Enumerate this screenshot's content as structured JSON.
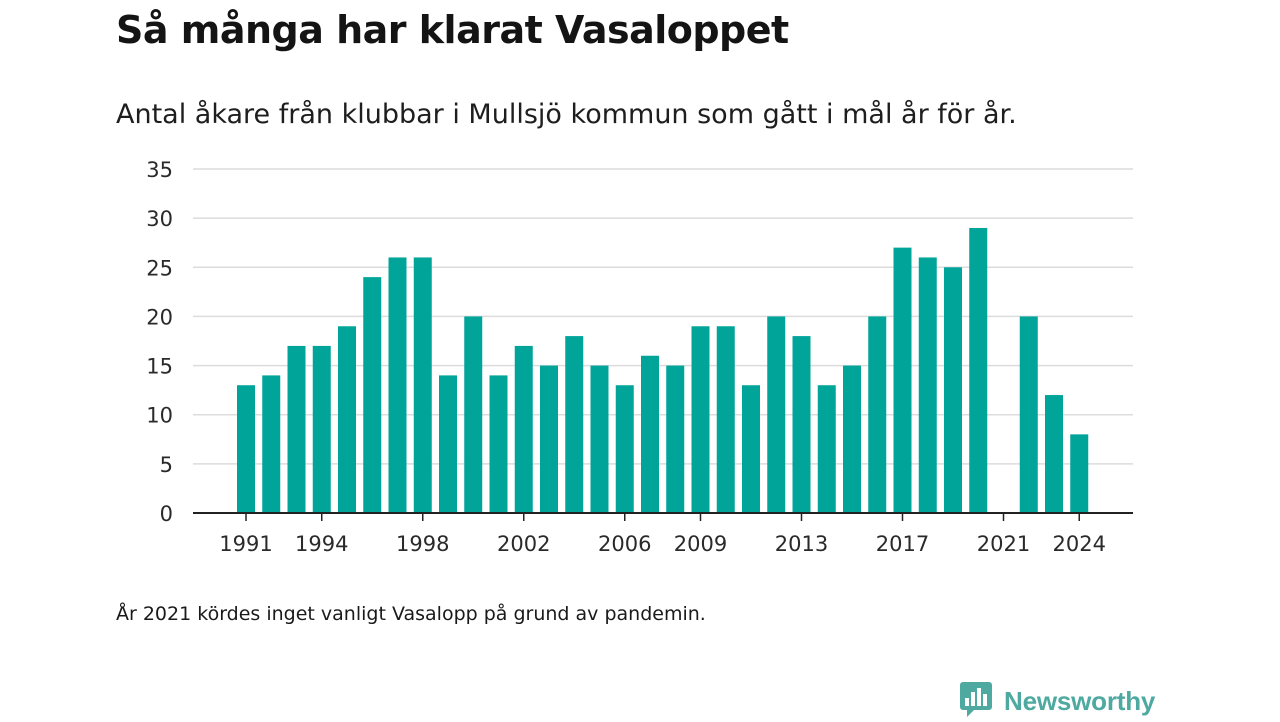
{
  "header": {
    "title": "Så många har klarat Vasaloppet",
    "subtitle": "Antal åkare från klubbar i Mullsjö kommun som gått i mål år för år."
  },
  "footnote": "År 2021 kördes inget vanligt Vasalopp på grund av pandemin.",
  "brand": {
    "name": "Newsworthy",
    "icon": "newsworthy-logo-icon",
    "color": "#4ea9a0"
  },
  "colors": {
    "bar": "#00a499",
    "grid": "#dcdcdc",
    "axis": "#222222"
  },
  "chart_data": {
    "type": "bar",
    "title": "Så många har klarat Vasaloppet",
    "subtitle": "Antal åkare från klubbar i Mullsjö kommun som gått i mål år för år.",
    "xlabel": "",
    "ylabel": "",
    "ylim": [
      0,
      35
    ],
    "yticks": [
      0,
      5,
      10,
      15,
      20,
      25,
      30,
      35
    ],
    "xtick_labels": [
      "1991",
      "1994",
      "1998",
      "2002",
      "2006",
      "2009",
      "2013",
      "2017",
      "2021",
      "2024"
    ],
    "grid": true,
    "categories": [
      "1991",
      "1992",
      "1993",
      "1994",
      "1995",
      "1996",
      "1997",
      "1998",
      "1999",
      "2000",
      "2001",
      "2002",
      "2003",
      "2004",
      "2005",
      "2006",
      "2007",
      "2008",
      "2009",
      "2010",
      "2011",
      "2012",
      "2013",
      "2014",
      "2015",
      "2016",
      "2017",
      "2018",
      "2019",
      "2020",
      "2021",
      "2022",
      "2023",
      "2024"
    ],
    "values": [
      13,
      14,
      17,
      17,
      19,
      24,
      26,
      26,
      14,
      20,
      14,
      17,
      15,
      18,
      15,
      13,
      16,
      15,
      19,
      19,
      13,
      20,
      18,
      13,
      15,
      20,
      27,
      26,
      25,
      29,
      null,
      20,
      12,
      8
    ]
  }
}
